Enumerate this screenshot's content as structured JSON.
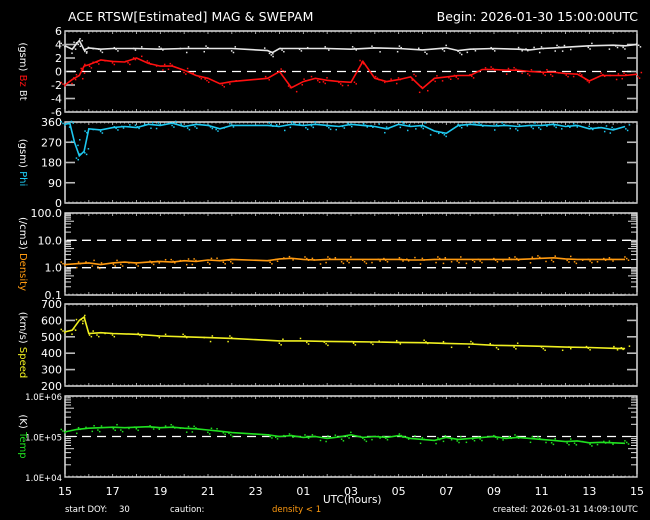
{
  "header": {
    "title": "ACE RTSW[Estimated] MAG & SWEPAM",
    "begin": "Begin: 2026-01-30 15:00:00UTC"
  },
  "footer": {
    "start_doy_label": "start DOY:",
    "start_doy_value": "30",
    "caution_label": "caution:",
    "caution_text": "density < 1",
    "created": "created: 2026-01-31 14:09:10UTC"
  },
  "colors": {
    "background": "#000000",
    "axes": "#ffffff",
    "bt": "#e6e6e6",
    "bz": "#ff1010",
    "phi": "#1ec8f0",
    "density": "#ff9a10",
    "speed": "#f0f020",
    "temp": "#20e020",
    "caution": "#ff9a10"
  },
  "chart_data": {
    "type": "line",
    "title": "ACE RTSW[Estimated] MAG & SWEPAM",
    "xlabel": "UTC(hours)",
    "x_ticks": [
      "15",
      "17",
      "19",
      "21",
      "23",
      "01",
      "03",
      "05",
      "07",
      "09",
      "11",
      "13",
      "15"
    ],
    "x_range_hours": [
      0,
      24
    ],
    "data_gap_hours": [
      7.2,
      8.2
    ],
    "panels": [
      {
        "id": "mag",
        "ylabel_parts": [
          {
            "text": "Bt",
            "color": "#e6e6e6"
          },
          {
            "text": "Bz",
            "color": "#ff1010"
          },
          {
            "text": "(gsm)",
            "color": "#ffffff"
          }
        ],
        "scale": "linear",
        "ylim": [
          -6,
          6
        ],
        "yticks": [
          "6",
          "4",
          "2",
          "0",
          "-2",
          "-4",
          "-6"
        ],
        "yvals": [
          6,
          4,
          2,
          0,
          -2,
          -4,
          -6
        ],
        "dashed_lines": [
          0
        ],
        "series": [
          {
            "name": "Bt",
            "color": "#e6e6e6",
            "x": [
              0,
              0.3,
              0.5,
              0.6,
              0.8,
              1.0,
              1.5,
              2,
              3,
              4,
              5,
              6,
              7,
              7.5,
              8,
              8.5,
              8.7,
              9,
              10,
              11,
              12,
              13,
              14,
              15,
              16,
              16.5,
              17,
              18,
              19,
              19.5,
              20,
              20.5,
              21,
              22,
              23,
              23.5,
              24
            ],
            "y": [
              3.8,
              3.3,
              4.2,
              4.6,
              3.2,
              3.5,
              3.3,
              3.4,
              3.4,
              3.3,
              3.4,
              3.4,
              3.4,
              3.0,
              3.6,
              3.1,
              2.8,
              3.4,
              3.4,
              3.4,
              3.3,
              3.5,
              3.4,
              3.2,
              3.5,
              3.1,
              3.3,
              3.4,
              3.3,
              3.2,
              3.4,
              3.5,
              3.6,
              3.8,
              3.9,
              3.8,
              4.0
            ]
          },
          {
            "name": "Bz",
            "color": "#ff1010",
            "x": [
              0,
              0.3,
              0.6,
              0.8,
              1.0,
              1.5,
              2,
              2.5,
              3,
              3.5,
              4,
              4.5,
              5,
              5.5,
              6,
              6.5,
              7,
              7.5,
              8,
              8.5,
              9,
              9.5,
              10,
              10.5,
              11,
              11.5,
              12,
              12.5,
              13,
              13.5,
              14,
              14.5,
              15,
              15.5,
              16,
              16.5,
              17,
              17.5,
              18,
              18.5,
              19,
              19.5,
              20,
              20.5,
              21,
              21.5,
              22,
              22.5,
              23,
              23.5,
              24
            ],
            "y": [
              -2.0,
              -1.2,
              -0.6,
              0.8,
              1.0,
              1.7,
              1.5,
              1.4,
              2.0,
              1.2,
              0.8,
              0.8,
              0.2,
              -0.6,
              -1.0,
              -1.8,
              -1.5,
              -0.2,
              -2.0,
              -1.0,
              0.0,
              -2.4,
              -1.5,
              -1.0,
              -1.3,
              -1.5,
              -1.6,
              1.5,
              -1.0,
              -1.5,
              -1.2,
              -0.8,
              -2.5,
              -1.0,
              -0.8,
              -0.6,
              -0.6,
              0.3,
              0.3,
              0.2,
              0.2,
              0.0,
              -0.1,
              -0.1,
              -0.3,
              -0.4,
              -1.4,
              -0.6,
              -0.6,
              -0.6,
              -0.4
            ]
          }
        ]
      },
      {
        "id": "phi",
        "ylabel_parts": [
          {
            "text": "Phi",
            "color": "#1ec8f0"
          },
          {
            "text": "(gsm)",
            "color": "#ffffff"
          }
        ],
        "scale": "linear",
        "ylim": [
          0,
          360
        ],
        "yticks": [
          "360",
          "270",
          "180",
          "90",
          "0"
        ],
        "yvals": [
          360,
          270,
          180,
          90,
          0
        ],
        "dashed_lines": [],
        "series": [
          {
            "name": "Phi",
            "color": "#1ec8f0",
            "x": [
              0,
              0.2,
              0.4,
              0.6,
              0.8,
              1.0,
              1.5,
              2,
              2.5,
              3,
              3.5,
              4,
              4.5,
              5,
              5.5,
              6,
              6.5,
              7,
              7.5,
              8,
              8.5,
              9,
              9.5,
              10,
              10.5,
              11,
              11.5,
              12,
              12.5,
              13,
              13.5,
              14,
              14.5,
              15,
              15.5,
              16,
              16.5,
              17,
              17.5,
              18,
              18.5,
              19,
              19.5,
              20,
              20.5,
              21,
              21.5,
              22,
              22.5,
              23,
              23.5
            ],
            "y": [
              350,
              355,
              270,
              210,
              230,
              330,
              325,
              335,
              340,
              335,
              350,
              345,
              355,
              340,
              350,
              345,
              330,
              345,
              340,
              350,
              345,
              340,
              350,
              345,
              350,
              345,
              340,
              350,
              345,
              340,
              330,
              350,
              340,
              345,
              320,
              310,
              345,
              350,
              345,
              342,
              345,
              340,
              345,
              345,
              350,
              340,
              345,
              330,
              335,
              325,
              340
            ]
          }
        ]
      },
      {
        "id": "density",
        "ylabel_parts": [
          {
            "text": "Density",
            "color": "#ff9a10"
          },
          {
            "text": "(/cm3)",
            "color": "#ffffff"
          }
        ],
        "scale": "log",
        "ylim": [
          0.1,
          100
        ],
        "yticks": [
          "100.0",
          "10.0",
          "1.0",
          "0.1"
        ],
        "yvals": [
          100,
          10,
          1,
          0.1
        ],
        "dashed_lines": [
          10,
          1
        ],
        "series": [
          {
            "name": "Density",
            "color": "#ff9a10",
            "x": [
              0,
              0.5,
              1,
              1.5,
              2,
              2.5,
              3,
              3.5,
              4,
              4.5,
              5,
              5.5,
              6,
              6.5,
              7,
              7.5,
              8,
              8.5,
              9,
              9.5,
              10,
              10.5,
              11,
              11.5,
              12,
              12.5,
              13,
              13.5,
              14,
              14.5,
              15,
              15.5,
              16,
              16.5,
              17,
              17.5,
              18,
              18.5,
              19,
              19.5,
              20,
              20.5,
              21,
              21.5,
              22,
              22.5,
              23,
              23.5
            ],
            "y": [
              1.3,
              1.4,
              1.5,
              1.3,
              1.5,
              1.6,
              1.5,
              1.6,
              1.7,
              1.6,
              1.8,
              1.7,
              1.9,
              1.8,
              2.0,
              1.9,
              2.0,
              1.8,
              2.1,
              2.2,
              2.0,
              1.9,
              2.0,
              2.0,
              2.0,
              2.0,
              2.0,
              2.0,
              2.0,
              1.9,
              1.9,
              2.0,
              2.0,
              2.0,
              2.0,
              2.0,
              2.0,
              2.0,
              2.0,
              2.1,
              2.2,
              2.3,
              2.1,
              2.0,
              2.0,
              2.0,
              2.0,
              2.0
            ]
          }
        ]
      },
      {
        "id": "speed",
        "ylabel_parts": [
          {
            "text": "Speed",
            "color": "#f0f020"
          },
          {
            "text": "(km/s)",
            "color": "#ffffff"
          }
        ],
        "scale": "linear",
        "ylim": [
          200,
          700
        ],
        "yticks": [
          "700",
          "600",
          "500",
          "400",
          "300",
          "200"
        ],
        "yvals": [
          700,
          600,
          500,
          400,
          300,
          200
        ],
        "dashed_lines": [],
        "series": [
          {
            "name": "Speed",
            "color": "#f0f020",
            "x": [
              0,
              0.3,
              0.6,
              0.8,
              1.0,
              1.5,
              2,
              3,
              4,
              5,
              6,
              7,
              7.5,
              8,
              9,
              10,
              11,
              12,
              13,
              14,
              15,
              16,
              17,
              18,
              19,
              20,
              21,
              22,
              23,
              23.5
            ],
            "y": [
              530,
              540,
              600,
              620,
              520,
              525,
              520,
              515,
              505,
              500,
              495,
              490,
              495,
              480,
              475,
              475,
              472,
              470,
              468,
              466,
              464,
              460,
              456,
              448,
              446,
              442,
              437,
              435,
              430,
              428
            ]
          }
        ]
      },
      {
        "id": "temp",
        "ylabel_parts": [
          {
            "text": "Temp",
            "color": "#20e020"
          },
          {
            "text": "(K)",
            "color": "#ffffff"
          }
        ],
        "scale": "log",
        "ylim": [
          10000,
          1000000
        ],
        "yticks": [
          "1.0E+06",
          "1.0E+05",
          "1.0E+04"
        ],
        "yvals": [
          1000000,
          100000,
          10000
        ],
        "dashed_lines": [
          100000
        ],
        "series": [
          {
            "name": "Temp",
            "color": "#20e020",
            "x": [
              0,
              0.5,
              1,
              1.5,
              2,
              2.5,
              3,
              3.5,
              4,
              4.5,
              5,
              5.5,
              6,
              6.5,
              7,
              7.5,
              8,
              8.5,
              9,
              9.5,
              10,
              10.5,
              11,
              11.5,
              12,
              12.5,
              13,
              13.5,
              14,
              14.5,
              15,
              15.5,
              16,
              16.5,
              17,
              17.5,
              18,
              18.5,
              19,
              19.5,
              20,
              20.5,
              21,
              21.5,
              22,
              22.5,
              23,
              23.5
            ],
            "y": [
              130000,
              150000,
              160000,
              165000,
              170000,
              165000,
              170000,
              175000,
              165000,
              170000,
              160000,
              155000,
              145000,
              135000,
              125000,
              120000,
              105000,
              110000,
              100000,
              105000,
              95000,
              100000,
              90000,
              98000,
              110000,
              95000,
              100000,
              95000,
              105000,
              90000,
              85000,
              80000,
              95000,
              85000,
              90000,
              95000,
              100000,
              90000,
              95000,
              90000,
              85000,
              80000,
              75000,
              78000,
              70000,
              72000,
              70000,
              68000
            ]
          }
        ]
      }
    ]
  }
}
